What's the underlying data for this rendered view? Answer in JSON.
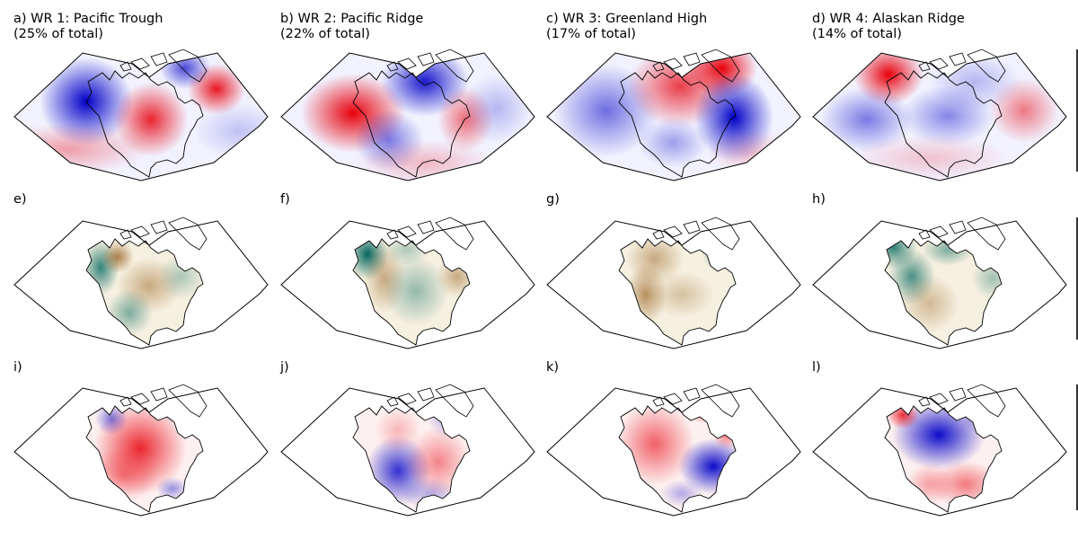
{
  "rows": [
    {
      "field": "anomaly-diverging-blue-red",
      "panels": [
        {
          "label": "a) WR 1: Pacific Trough\n(25% of total)"
        },
        {
          "label": "b) WR 2: Pacific Ridge\n(22% of total)"
        },
        {
          "label": "c) WR 3: Greenland High\n(17% of total)"
        },
        {
          "label": "d) WR 4: Alaskan Ridge\n(14% of total)"
        }
      ]
    },
    {
      "field": "anomaly-diverging-brown-teal",
      "panels": [
        {
          "label": "e)"
        },
        {
          "label": "f)"
        },
        {
          "label": "g)"
        },
        {
          "label": "h)"
        }
      ]
    },
    {
      "field": "anomaly-diverging-blue-red",
      "panels": [
        {
          "label": "i)"
        },
        {
          "label": "j)"
        },
        {
          "label": "k)"
        },
        {
          "label": "l)"
        }
      ]
    }
  ],
  "colors": {
    "positive_red": "#e8000b",
    "negative_blue": "#0000c8",
    "dry_brown": "#8c510a",
    "wet_teal": "#01665e",
    "coastline": "#000000"
  }
}
